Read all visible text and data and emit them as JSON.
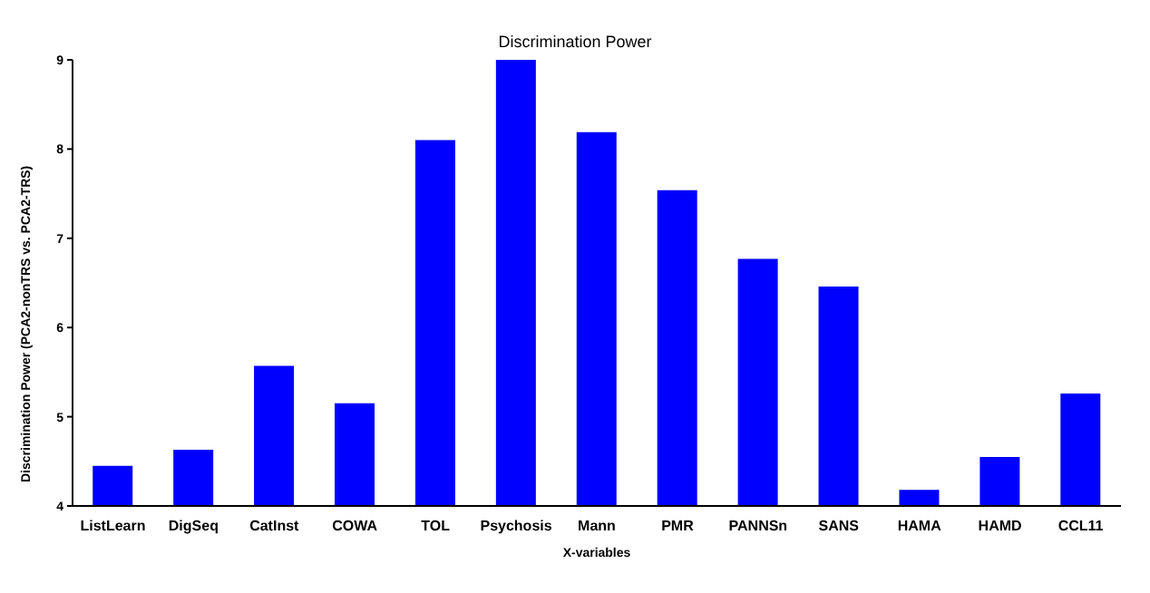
{
  "chart_data": {
    "type": "bar",
    "title": "Discrimination Power",
    "xlabel": "X-variables",
    "ylabel": "Discrimination Power (PCA2-nonTRS vs. PCA2-TRS)",
    "categories": [
      "ListLearn",
      "DigSeq",
      "CatInst",
      "COWA",
      "TOL",
      "Psychosis",
      "Mann",
      "PMR",
      "PANNSn",
      "SANS",
      "HAMA",
      "HAMD",
      "CCL11"
    ],
    "values": [
      4.45,
      4.63,
      5.57,
      5.15,
      8.1,
      9.0,
      8.19,
      7.54,
      6.77,
      6.46,
      4.18,
      4.55,
      5.26
    ],
    "color": "#0000ff",
    "ylim": [
      4,
      9
    ],
    "yticks": [
      4,
      5,
      6,
      7,
      8,
      9
    ],
    "grid": false
  }
}
